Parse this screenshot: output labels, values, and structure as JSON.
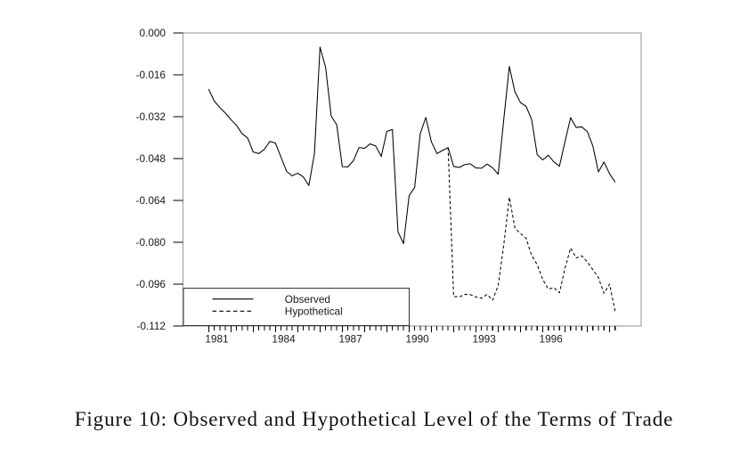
{
  "page": {
    "background": "#ffffff"
  },
  "caption": "Figure 10: Observed and Hypothetical Level of the Terms of Trade",
  "chart_data": {
    "type": "line",
    "title": "",
    "xlabel": "",
    "ylabel": "",
    "x_unit": "quarterly",
    "x_first_period": "1981Q1",
    "x_last_period": "1999Q2",
    "x_tick_labels": [
      "1981",
      "1984",
      "1987",
      "1990",
      "1993",
      "1996"
    ],
    "y_tick_labels": [
      "0.000",
      "-0.016",
      "-0.032",
      "-0.048",
      "-0.064",
      "-0.080",
      "-0.096",
      "-0.112"
    ],
    "y_tick_values": [
      0.0,
      -0.016,
      -0.032,
      -0.048,
      -0.064,
      -0.08,
      -0.096,
      -0.112
    ],
    "ylim": [
      -0.112,
      0.0
    ],
    "grid": "off",
    "legend_position": "bottom-left-inside",
    "legend": [
      {
        "label": "Observed",
        "style": "solid"
      },
      {
        "label": "Hypothetical",
        "style": "dashed"
      }
    ],
    "series": [
      {
        "name": "Observed",
        "style": "solid",
        "start_quarter_index": 0,
        "values": [
          -0.0215,
          -0.026,
          -0.0285,
          -0.0306,
          -0.0331,
          -0.0353,
          -0.0385,
          -0.0401,
          -0.0455,
          -0.0461,
          -0.0445,
          -0.0414,
          -0.0421,
          -0.0475,
          -0.0529,
          -0.0546,
          -0.0536,
          -0.055,
          -0.0583,
          -0.0461,
          -0.0054,
          -0.0131,
          -0.0317,
          -0.0351,
          -0.0511,
          -0.0512,
          -0.0488,
          -0.0438,
          -0.0441,
          -0.0424,
          -0.0432,
          -0.0472,
          -0.0376,
          -0.0369,
          -0.076,
          -0.0805,
          -0.0622,
          -0.059,
          -0.0385,
          -0.0323,
          -0.0416,
          -0.0461,
          -0.0449,
          -0.0438,
          -0.051,
          -0.0514,
          -0.0503,
          -0.05,
          -0.0516,
          -0.0517,
          -0.0501,
          -0.0515,
          -0.054,
          -0.033,
          -0.0128,
          -0.0225,
          -0.0266,
          -0.028,
          -0.033,
          -0.0465,
          -0.0485,
          -0.0467,
          -0.0493,
          -0.0509,
          -0.0415,
          -0.0324,
          -0.0361,
          -0.0359,
          -0.0377,
          -0.0432,
          -0.0531,
          -0.0493,
          -0.0538,
          -0.057
        ]
      },
      {
        "name": "Hypothetical",
        "style": "dashed",
        "start_quarter_index": 43,
        "values": [
          -0.0438,
          -0.1007,
          -0.1009,
          -0.0999,
          -0.1,
          -0.1009,
          -0.1014,
          -0.0999,
          -0.1021,
          -0.0965,
          -0.081,
          -0.0628,
          -0.0745,
          -0.0767,
          -0.0784,
          -0.085,
          -0.0885,
          -0.0942,
          -0.0979,
          -0.0973,
          -0.0993,
          -0.0898,
          -0.0822,
          -0.086,
          -0.0852,
          -0.0875,
          -0.0905,
          -0.0935,
          -0.0995,
          -0.096,
          -0.1064
        ]
      }
    ],
    "colors": {
      "line": "#000000",
      "frame": "#a9a9a9",
      "tick": "#000000",
      "text": "#1a1a1a",
      "legend_border": "#333333"
    }
  }
}
